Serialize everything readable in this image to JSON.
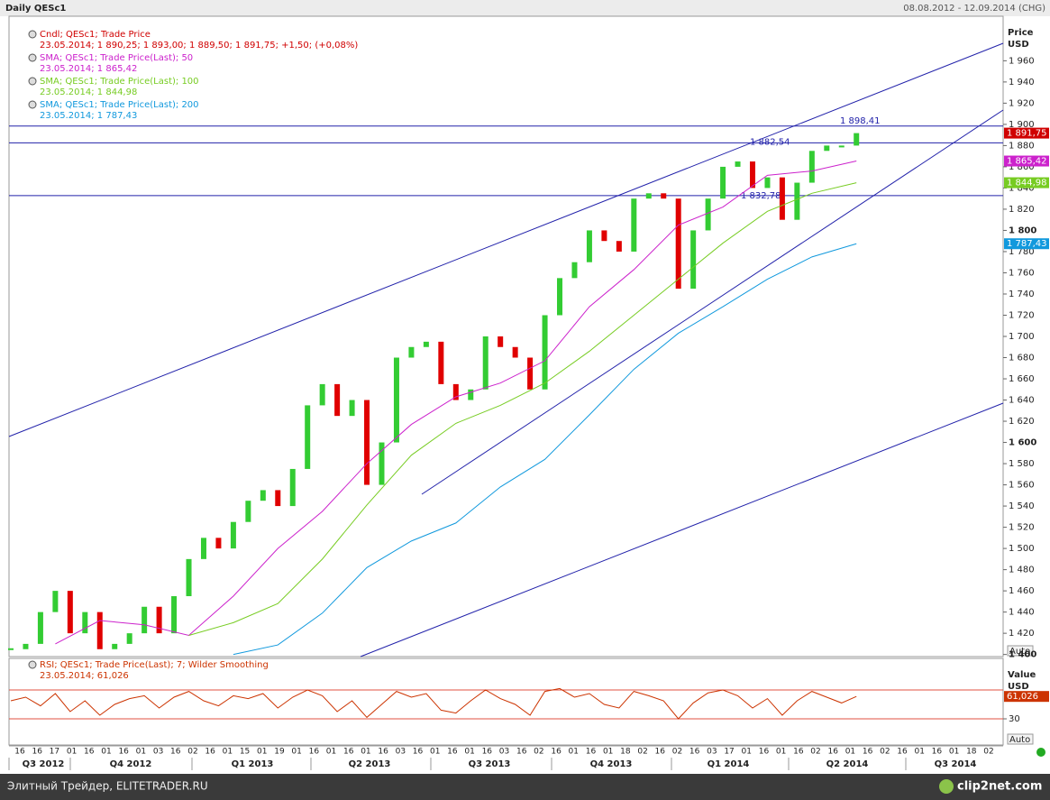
{
  "header": {
    "title": "Daily QESc1",
    "range": "08.08.2012 - 12.09.2014 (CHG)"
  },
  "chart_data": [
    {
      "type": "candle",
      "axis_title": [
        "Price",
        "USD"
      ],
      "auto": "Auto",
      "ylim": [
        1398,
        2002
      ],
      "yticks": [
        {
          "value": 1400,
          "label": "1 400"
        },
        {
          "value": 1420,
          "label": "1 420"
        },
        {
          "value": 1440,
          "label": "1 440"
        },
        {
          "value": 1460,
          "label": "1 460"
        },
        {
          "value": 1480,
          "label": "1 480"
        },
        {
          "value": 1500,
          "label": "1 500"
        },
        {
          "value": 1520,
          "label": "1 520"
        },
        {
          "value": 1540,
          "label": "1 540"
        },
        {
          "value": 1560,
          "label": "1 560"
        },
        {
          "value": 1580,
          "label": "1 580"
        },
        {
          "value": 1600,
          "label": "1 600"
        },
        {
          "value": 1620,
          "label": "1 620"
        },
        {
          "value": 1640,
          "label": "1 640"
        },
        {
          "value": 1660,
          "label": "1 660"
        },
        {
          "value": 1680,
          "label": "1 680"
        },
        {
          "value": 1700,
          "label": "1 700"
        },
        {
          "value": 1720,
          "label": "1 720"
        },
        {
          "value": 1740,
          "label": "1 740"
        },
        {
          "value": 1760,
          "label": "1 760"
        },
        {
          "value": 1780,
          "label": "1 780"
        },
        {
          "value": 1800,
          "label": "1 800"
        },
        {
          "value": 1820,
          "label": "1 820"
        },
        {
          "value": 1840,
          "label": "1 840"
        },
        {
          "value": 1860,
          "label": "1 860"
        },
        {
          "value": 1880,
          "label": "1 880"
        },
        {
          "value": 1900,
          "label": "1 900"
        },
        {
          "value": 1920,
          "label": "1 920"
        },
        {
          "value": 1940,
          "label": "1 940"
        },
        {
          "value": 1960,
          "label": "1 960"
        }
      ],
      "levels": [
        {
          "value": 1898.41,
          "label": "1 898,41"
        },
        {
          "value": 1882.54,
          "label": "1 882,54"
        },
        {
          "value": 1832.78,
          "label": "1 832,78"
        }
      ],
      "series": [
        {
          "name": "Cndl; QESc1; Trade Price",
          "info": "23.05.2014; 1 890,25; 1 893,00; 1 889,50; 1 891,75; +1,50; (+0,08%)",
          "color": "#d00000",
          "last_label": "1 891,75",
          "values": [
            1405,
            1410,
            1440,
            1460,
            1420,
            1440,
            1405,
            1410,
            1420,
            1445,
            1420,
            1455,
            1490,
            1510,
            1500,
            1525,
            1545,
            1555,
            1540,
            1575,
            1635,
            1655,
            1625,
            1640,
            1560,
            1600,
            1680,
            1690,
            1695,
            1655,
            1640,
            1650,
            1700,
            1690,
            1680,
            1650,
            1720,
            1755,
            1770,
            1800,
            1790,
            1780,
            1830,
            1835,
            1830,
            1745,
            1800,
            1830,
            1860,
            1865,
            1840,
            1850,
            1810,
            1845,
            1875,
            1880,
            1880,
            1891.75
          ]
        },
        {
          "name": "SMA; QESc1; Trade Price(Last);  50",
          "info": "23.05.2014; 1 865,42",
          "color": "#cc22cc",
          "last_label": "1 865,42",
          "x": [
            3,
            6,
            9,
            12,
            15,
            18,
            21,
            24,
            27,
            30,
            33,
            36,
            39,
            42,
            45,
            48,
            51,
            54,
            57
          ],
          "values": [
            1410,
            1432,
            1428,
            1418,
            1455,
            1500,
            1535,
            1580,
            1617,
            1643,
            1656,
            1677,
            1728,
            1763,
            1805,
            1822,
            1852,
            1856,
            1865.42
          ]
        },
        {
          "name": "SMA; QESc1; Trade Price(Last);  100",
          "info": "23.05.2014; 1 844,98",
          "color": "#77cc22",
          "last_label": "1 844,98",
          "x": [
            12,
            15,
            18,
            21,
            24,
            27,
            30,
            33,
            36,
            39,
            42,
            45,
            48,
            51,
            54,
            57
          ],
          "values": [
            1418,
            1430,
            1448,
            1490,
            1541,
            1588,
            1618,
            1635,
            1656,
            1686,
            1720,
            1754,
            1788,
            1818,
            1835,
            1844.98
          ]
        },
        {
          "name": "SMA; QESc1; Trade Price(Last);  200",
          "info": "23.05.2014; 1 787,43",
          "color": "#1199dd",
          "last_label": "1 787,43",
          "x": [
            15,
            18,
            21,
            24,
            27,
            30,
            33,
            36,
            39,
            42,
            45,
            48,
            51,
            54,
            57
          ],
          "values": [
            1400,
            1409,
            1439,
            1482,
            1507,
            1524,
            1558,
            1584,
            1626,
            1669,
            1703,
            1728,
            1754,
            1775,
            1787.43
          ]
        }
      ]
    },
    {
      "type": "line",
      "axis_title": [
        "Value",
        "USD"
      ],
      "auto": "Auto",
      "ylim": [
        -6.25,
        113.75
      ],
      "yticks": [
        30
      ],
      "levels": [
        70,
        30
      ],
      "series": [
        {
          "name": "RSI; QESc1; Trade Price(Last);  7; Wilder Smoothing",
          "info": "23.05.2014; 61,026",
          "color": "#cc3300",
          "last_label": "61,026",
          "values": [
            55,
            60,
            48,
            65,
            40,
            55,
            35,
            50,
            58,
            62,
            45,
            60,
            68,
            55,
            48,
            62,
            58,
            65,
            45,
            60,
            70,
            62,
            40,
            55,
            32,
            50,
            68,
            60,
            65,
            42,
            38,
            55,
            70,
            58,
            50,
            35,
            68,
            72,
            60,
            65,
            50,
            45,
            68,
            62,
            55,
            30,
            52,
            66,
            70,
            62,
            45,
            58,
            35,
            55,
            68,
            60,
            52,
            61.026
          ]
        }
      ]
    }
  ],
  "x_axis": {
    "days": [
      "16",
      "16",
      "17",
      "01",
      "16",
      "01",
      "16",
      "01",
      "03",
      "16",
      "02",
      "16",
      "01",
      "15",
      "01",
      "19",
      "01",
      "16",
      "01",
      "16",
      "01",
      "16",
      "03",
      "16",
      "01",
      "16",
      "01",
      "16",
      "03",
      "16",
      "02",
      "16",
      "01",
      "16",
      "01",
      "18",
      "02",
      "16",
      "02",
      "16",
      "03",
      "17",
      "01",
      "16",
      "01",
      "16",
      "02",
      "16",
      "01",
      "16",
      "02",
      "16",
      "01",
      "16",
      "01",
      "18",
      "02"
    ],
    "quarters": [
      "Q3 2012",
      "Q4 2012",
      "Q1 2013",
      "Q2 2013",
      "Q3 2013",
      "Q4 2013",
      "Q1 2014",
      "Q2 2014",
      "Q3 2014"
    ]
  },
  "footer": {
    "left": "Элитный Трейдер, ELITETRADER.RU",
    "right": "clip2net.com"
  }
}
